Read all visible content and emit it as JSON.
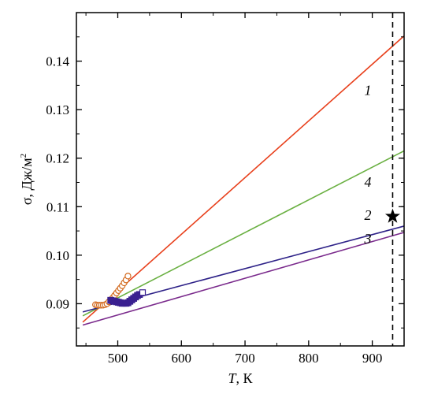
{
  "chart_data": {
    "type": "line",
    "title": "",
    "xlabel": "T, К",
    "xlabel_italic": "T",
    "xlabel_rest": ", К",
    "ylabel": "σ, Дж/м²",
    "ylabel_main": "σ, Дж/м",
    "ylabel_sup": "2",
    "xlim": [
      435,
      950
    ],
    "ylim": [
      0.0813,
      0.15
    ],
    "xticks": [
      500,
      600,
      700,
      800,
      900
    ],
    "xtick_labels": [
      "500",
      "600",
      "700",
      "800",
      "900"
    ],
    "yticks": [
      0.09,
      0.1,
      0.11,
      0.12,
      0.13,
      0.14
    ],
    "ytick_labels": [
      "0.09",
      "0.10",
      "0.11",
      "0.12",
      "0.13",
      "0.14"
    ],
    "grid": false,
    "legend": "none",
    "series": [
      {
        "label": "1",
        "color": "#e8401c",
        "x": [
          445,
          950
        ],
        "y": [
          0.0862,
          0.1452
        ]
      },
      {
        "label": "4",
        "color": "#6ab042",
        "x": [
          445,
          950
        ],
        "y": [
          0.0875,
          0.1215
        ]
      },
      {
        "label": "2",
        "color": "#2e2288",
        "x": [
          445,
          950
        ],
        "y": [
          0.0883,
          0.106
        ]
      },
      {
        "label": "3",
        "color": "#7a2a8c",
        "x": [
          445,
          950
        ],
        "y": [
          0.0856,
          0.1047
        ]
      }
    ],
    "curve_labels": [
      {
        "text": "1",
        "x": 893,
        "y": 0.133
      },
      {
        "text": "4",
        "x": 893,
        "y": 0.1141
      },
      {
        "text": "2",
        "x": 893,
        "y": 0.1073
      },
      {
        "text": "3",
        "x": 893,
        "y": 0.1024
      }
    ],
    "scatter": [
      {
        "marker": "circle-open",
        "color": "#d2691e",
        "points": [
          [
            465,
            0.0898
          ],
          [
            468,
            0.0897
          ],
          [
            471,
            0.0897
          ],
          [
            474,
            0.0897
          ],
          [
            477,
            0.0897
          ],
          [
            480,
            0.0898
          ],
          [
            483,
            0.09
          ],
          [
            486,
            0.0904
          ],
          [
            489,
            0.0908
          ],
          [
            492,
            0.0912
          ],
          [
            495,
            0.0917
          ],
          [
            498,
            0.0922
          ],
          [
            501,
            0.0927
          ],
          [
            504,
            0.0932
          ],
          [
            507,
            0.0937
          ],
          [
            510,
            0.0943
          ],
          [
            513,
            0.0949
          ],
          [
            516,
            0.0957
          ]
        ]
      },
      {
        "marker": "square-filled",
        "color": "#3a2090",
        "points": [
          [
            489,
            0.0907
          ],
          [
            492,
            0.0906
          ],
          [
            495,
            0.0905
          ],
          [
            498,
            0.0904
          ],
          [
            501,
            0.0903
          ],
          [
            504,
            0.0902
          ],
          [
            507,
            0.0901
          ],
          [
            510,
            0.0901
          ],
          [
            513,
            0.0901
          ],
          [
            516,
            0.0902
          ],
          [
            519,
            0.0905
          ],
          [
            522,
            0.0908
          ],
          [
            525,
            0.0911
          ],
          [
            528,
            0.0914
          ],
          [
            531,
            0.0917
          ],
          [
            534,
            0.0919
          ]
        ]
      },
      {
        "marker": "square-open",
        "color": "#3a2090",
        "points": [
          [
            539,
            0.0923
          ]
        ]
      }
    ],
    "vertical_line": {
      "x": 932,
      "style": "dashed",
      "color": "#000000"
    },
    "star": {
      "x": 932,
      "y": 0.108,
      "color": "#000000"
    }
  }
}
